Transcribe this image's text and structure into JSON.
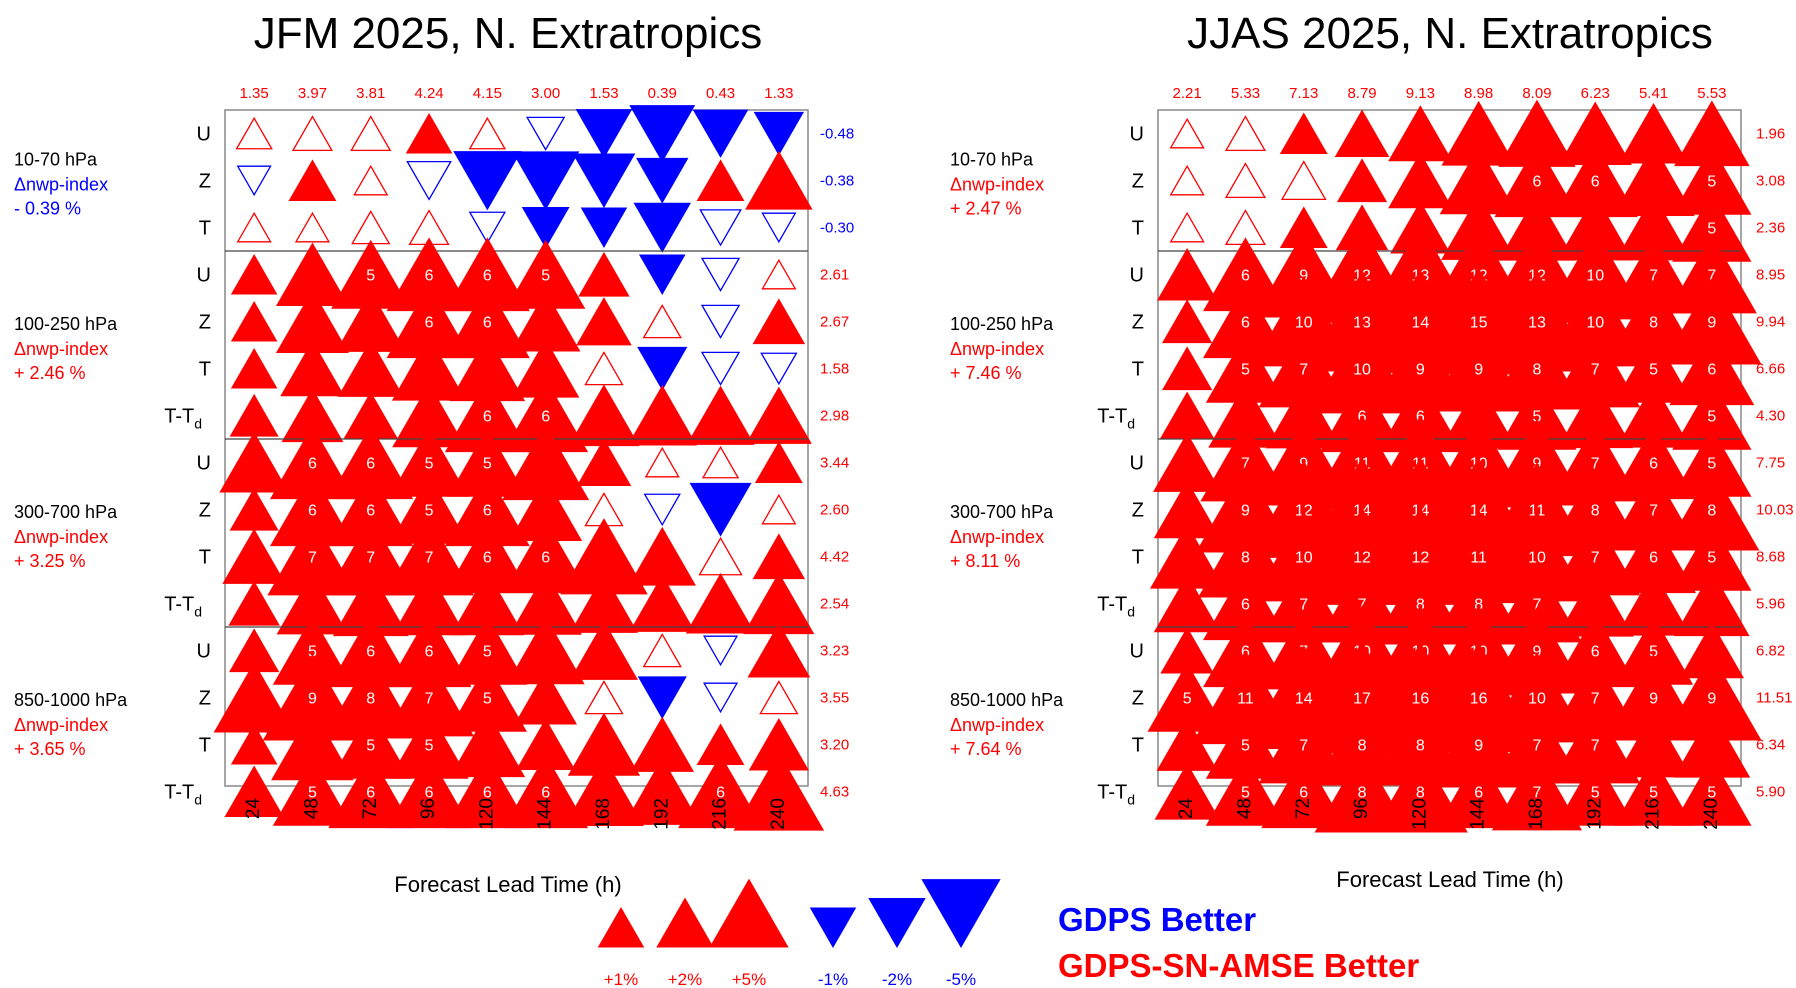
{
  "colors": {
    "positive": "#ff0000",
    "negative": "#0000ff",
    "text": "#000000",
    "border": "#888888",
    "separator": "#444444"
  },
  "chart_data": [
    {
      "type": "scorecard",
      "title": "JFM 2025, N. Extratropics",
      "xlabel": "Forecast Lead Time (h)",
      "lead_times": [
        "24",
        "48",
        "72",
        "96",
        "120",
        "144",
        "168",
        "192",
        "216",
        "240"
      ],
      "column_totals": [
        "1.35",
        "3.97",
        "3.81",
        "4.24",
        "4.15",
        "3.00",
        "1.53",
        "0.39",
        "0.43",
        "1.33"
      ],
      "groups": [
        {
          "name": "10-70 hPa",
          "index_label": "Δnwp-index",
          "index_value": "- 0.39 %",
          "rows": [
            {
              "var": "U",
              "total": "-0.48",
              "values": [
                0.4,
                0.6,
                0.6,
                1,
                0.4,
                -0.5,
                -1.9,
                -3,
                -1.8,
                -1.3
              ]
            },
            {
              "var": "Z",
              "total": "-0.38",
              "values": [
                -0.3,
                1.1,
                0.3,
                -0.9,
                -3.3,
                -3.2,
                -2.6,
                -1.5,
                1.1,
                3.2
              ]
            },
            {
              "var": "T",
              "total": "-0.30",
              "values": [
                0.3,
                0.3,
                0.5,
                0.6,
                -0.4,
                -1.1,
                -1,
                -2,
                -0.7,
                -0.3
              ]
            }
          ]
        },
        {
          "name": "100-250 hPa",
          "index_label": "Δnwp-index",
          "index_value": "+ 2.46 %",
          "rows": [
            {
              "var": "U",
              "total": "2.61",
              "values": [
                1,
                4,
                5,
                6,
                6,
                5,
                1.4,
                -1,
                -0.5,
                0.3
              ]
            },
            {
              "var": "Z",
              "total": "2.67",
              "values": [
                1,
                4,
                3.6,
                6,
                6,
                3.5,
                1.8,
                0.5,
                -0.5,
                1.5
              ]
            },
            {
              "var": "T",
              "total": "1.58",
              "values": [
                1,
                2.8,
                3,
                4.2,
                4.4,
                3.2,
                0.5,
                -1.3,
                -0.5,
                -0.4
              ]
            },
            {
              "var": "T-T_d",
              "total": "2.98",
              "values": [
                1.2,
                2.5,
                1.7,
                4.1,
                6,
                6,
                3.7,
                3.5,
                3.3,
                3
              ]
            }
          ]
        },
        {
          "name": "300-700 hPa",
          "index_label": "Δnwp-index",
          "index_value": "+ 3.25 %",
          "rows": [
            {
              "var": "U",
              "total": "3.44",
              "values": [
                3.5,
                6,
                6,
                5,
                5,
                6.4,
                1.7,
                0.3,
                0.4,
                1.1
              ]
            },
            {
              "var": "Z",
              "total": "2.60",
              "values": [
                1.2,
                6,
                6,
                5,
                6,
                4,
                0.5,
                -0.4,
                -2.5,
                0.3
              ]
            },
            {
              "var": "T",
              "total": "4.42",
              "values": [
                2.7,
                7,
                7,
                7,
                6,
                6,
                6.5,
                3.2,
                0.8,
                1.5
              ]
            },
            {
              "var": "T-T_d",
              "total": "2.54",
              "values": [
                1.4,
                3.8,
                4.4,
                4.1,
                4.1,
                3.9,
                3.3,
                3,
                3.5,
                3.7
              ]
            }
          ]
        },
        {
          "name": "850-1000 hPa",
          "index_label": "Δnwp-index",
          "index_value": "+ 3.65 %",
          "rows": [
            {
              "var": "U",
              "total": "3.23",
              "values": [
                1.3,
                5,
                6,
                6,
                5,
                4.8,
                3.3,
                0.5,
                -0.3,
                2.6
              ]
            },
            {
              "var": "Z",
              "total": "3.55",
              "values": [
                5.3,
                9,
                8,
                7,
                5,
                2.6,
                0.5,
                -1.2,
                -0.3,
                0.5
              ]
            },
            {
              "var": "T",
              "total": "3.20",
              "values": [
                1,
                5.6,
                5,
                5,
                4.4,
                2.2,
                3.9,
                2.7,
                1.1,
                2.3
              ]
            },
            {
              "var": "T-T_d",
              "total": "4.63",
              "values": [
                2.2,
                5,
                6,
                6,
                6,
                6,
                5.1,
                4.7,
                6,
                7.1
              ]
            }
          ]
        }
      ]
    },
    {
      "type": "scorecard",
      "title": "JJAS 2025, N. Extratropics",
      "xlabel": "Forecast Lead Time (h)",
      "lead_times": [
        "24",
        "48",
        "72",
        "96",
        "120",
        "144",
        "168",
        "192",
        "216",
        "240"
      ],
      "column_totals": [
        "2.21",
        "5.33",
        "7.13",
        "8.79",
        "9.13",
        "8.98",
        "8.09",
        "6.23",
        "5.41",
        "5.53"
      ],
      "groups": [
        {
          "name": "10-70 hPa",
          "index_label": "Δnwp-index",
          "index_value": "+ 2.47 %",
          "rows": [
            {
              "var": "U",
              "total": "1.96",
              "values": [
                0.3,
                0.6,
                1.1,
                1.7,
                2.8,
                4.2,
                4.7,
                4,
                3.5,
                4.4
              ]
            },
            {
              "var": "Z",
              "total": "3.08",
              "values": [
                0.3,
                0.6,
                0.9,
                1.3,
                2.8,
                4.8,
                6,
                6,
                5.5,
                5
              ]
            },
            {
              "var": "T",
              "total": "2.36",
              "values": [
                0.3,
                0.6,
                1.1,
                1.5,
                2.3,
                4.3,
                4.6,
                4.5,
                4.5,
                5
              ]
            }
          ]
        },
        {
          "name": "100-250 hPa",
          "index_label": "Δnwp-index",
          "index_value": "+ 7.46 %",
          "rows": [
            {
              "var": "U",
              "total": "8.95",
              "values": [
                2.3,
                6,
                9,
                12,
                13,
                12,
                12,
                10,
                7,
                7
              ]
            },
            {
              "var": "Z",
              "total": "9.94",
              "values": [
                1.3,
                6,
                10,
                13,
                14,
                15,
                13,
                10,
                8,
                9
              ]
            },
            {
              "var": "T",
              "total": "6.66",
              "values": [
                1.3,
                5,
                7,
                10,
                9,
                9,
                8,
                7,
                5,
                6
              ]
            },
            {
              "var": "T-T_d",
              "total": "4.30",
              "values": [
                1.7,
                4.2,
                4.5,
                6,
                6,
                4.6,
                5,
                4.4,
                4.2,
                5
              ]
            }
          ]
        },
        {
          "name": "300-700 hPa",
          "index_label": "Δnwp-index",
          "index_value": "+ 8.11 %",
          "rows": [
            {
              "var": "U",
              "total": "7.75",
              "values": [
                3.3,
                7,
                9,
                11,
                11,
                10,
                9,
                7,
                6,
                5
              ]
            },
            {
              "var": "Z",
              "total": "10.03",
              "values": [
                3.1,
                9,
                12,
                14,
                14,
                14,
                11,
                8,
                7,
                8
              ]
            },
            {
              "var": "T",
              "total": "8.68",
              "values": [
                4.2,
                8,
                10,
                12,
                12,
                11,
                10,
                7,
                6,
                5
              ]
            },
            {
              "var": "T-T_d",
              "total": "5.96",
              "values": [
                3.1,
                6,
                7,
                7,
                8,
                8,
                7,
                4.6,
                4.2,
                4.4
              ]
            }
          ]
        },
        {
          "name": "850-1000 hPa",
          "index_label": "Δnwp-index",
          "index_value": "+ 7.64 %",
          "rows": [
            {
              "var": "U",
              "total": "6.82",
              "values": [
                1.6,
                6,
                7,
                10,
                10,
                10,
                9,
                6,
                5,
                2.8
              ]
            },
            {
              "var": "Z",
              "total": "11.51",
              "values": [
                5,
                11,
                14,
                17,
                16,
                16,
                10,
                7,
                9,
                9
              ]
            },
            {
              "var": "T",
              "total": "6.34",
              "values": [
                2.4,
                5,
                7,
                8,
                8,
                9,
                7,
                7,
                4.5,
                4.6
              ]
            },
            {
              "var": "T-T_d",
              "total": "5.90",
              "values": [
                2.9,
                5,
                6,
                8,
                8,
                6,
                7,
                5,
                5,
                5
              ]
            }
          ]
        }
      ]
    }
  ],
  "legend": {
    "items": [
      {
        "label": "+1%",
        "value": 1
      },
      {
        "label": "+2%",
        "value": 2
      },
      {
        "label": "+5%",
        "value": 5
      },
      {
        "label": "-1%",
        "value": -1
      },
      {
        "label": "-2%",
        "value": -2
      },
      {
        "label": "-5%",
        "value": -5
      }
    ],
    "negative_label": "GDPS Better",
    "positive_label": "GDPS-SN-AMSE Better"
  }
}
